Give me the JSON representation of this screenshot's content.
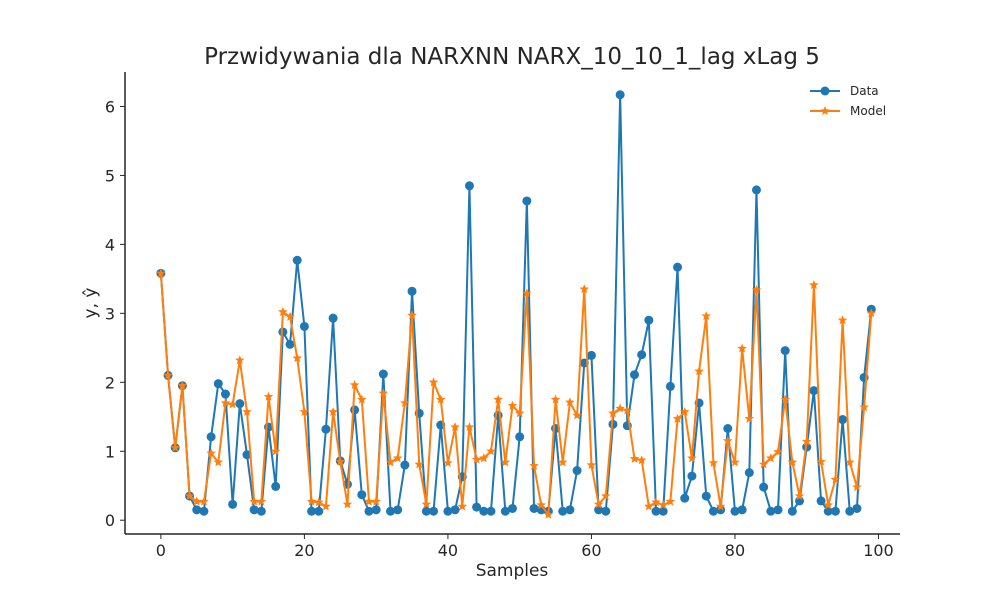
{
  "chart_data": {
    "type": "line",
    "title": "Przwidywania dla NARXNN NARX_10_10_1_lag xLag 5",
    "xlabel": "Samples",
    "ylabel": "y, ŷ",
    "xlim": [
      -5,
      103
    ],
    "ylim": [
      -0.2,
      6.5
    ],
    "x_ticks": [
      "0",
      "20",
      "40",
      "60",
      "80",
      "100"
    ],
    "y_ticks": [
      "0",
      "1",
      "2",
      "3",
      "4",
      "5",
      "6"
    ],
    "grid": false,
    "legend_position": "top-right",
    "x": [
      0,
      1,
      2,
      3,
      4,
      5,
      6,
      7,
      8,
      9,
      10,
      11,
      12,
      13,
      14,
      15,
      16,
      17,
      18,
      19,
      20,
      21,
      22,
      23,
      24,
      25,
      26,
      27,
      28,
      29,
      30,
      31,
      32,
      33,
      34,
      35,
      36,
      37,
      38,
      39,
      40,
      41,
      42,
      43,
      44,
      45,
      46,
      47,
      48,
      49,
      50,
      51,
      52,
      53,
      54,
      55,
      56,
      57,
      58,
      59,
      60,
      61,
      62,
      63,
      64,
      65,
      66,
      67,
      68,
      69,
      70,
      71,
      72,
      73,
      74,
      75,
      76,
      77,
      78,
      79,
      80,
      81,
      82,
      83,
      84,
      85,
      86,
      87,
      88,
      89,
      90,
      91,
      92,
      93,
      94,
      95,
      96,
      97,
      98,
      99
    ],
    "series": [
      {
        "name": "Data",
        "color": "#1f77b4",
        "marker": "circle",
        "values": [
          3.58,
          2.1,
          1.05,
          1.95,
          0.35,
          0.15,
          0.13,
          1.21,
          1.98,
          1.83,
          0.23,
          1.69,
          0.95,
          0.15,
          0.13,
          1.35,
          0.49,
          2.73,
          2.55,
          3.77,
          2.81,
          0.13,
          0.13,
          1.32,
          2.93,
          0.86,
          0.52,
          1.6,
          0.37,
          0.13,
          0.15,
          2.12,
          0.13,
          0.15,
          0.8,
          3.32,
          1.55,
          0.13,
          0.13,
          1.38,
          0.13,
          0.15,
          0.63,
          4.85,
          0.19,
          0.13,
          0.13,
          1.52,
          0.13,
          0.17,
          1.21,
          4.63,
          0.17,
          0.15,
          0.13,
          1.33,
          0.13,
          0.15,
          0.72,
          2.28,
          2.39,
          0.15,
          0.13,
          1.39,
          6.17,
          1.37,
          2.11,
          2.4,
          2.9,
          0.13,
          0.13,
          1.94,
          3.67,
          0.32,
          0.64,
          1.7,
          0.35,
          0.13,
          0.15,
          1.33,
          0.13,
          0.15,
          0.69,
          4.79,
          0.48,
          0.13,
          0.15,
          2.46,
          0.13,
          0.28,
          1.06,
          1.88,
          0.28,
          0.13,
          0.13,
          1.46,
          0.13,
          0.17,
          2.07,
          3.06
        ]
      },
      {
        "name": "Model",
        "color": "#ff7f0e",
        "marker": "star",
        "values": [
          3.58,
          2.1,
          1.05,
          1.95,
          0.35,
          0.27,
          0.27,
          0.97,
          0.84,
          1.7,
          1.68,
          2.32,
          1.57,
          0.27,
          0.27,
          1.79,
          1.0,
          3.02,
          2.95,
          2.35,
          1.57,
          0.27,
          0.26,
          0.2,
          1.57,
          0.85,
          0.23,
          1.96,
          1.75,
          0.27,
          0.27,
          1.84,
          0.84,
          0.9,
          1.7,
          2.97,
          0.81,
          0.23,
          2.0,
          1.75,
          0.83,
          1.35,
          0.2,
          1.35,
          0.88,
          0.9,
          1.0,
          1.75,
          0.84,
          1.66,
          1.55,
          3.29,
          0.79,
          0.22,
          0.08,
          1.75,
          0.84,
          1.71,
          1.52,
          3.35,
          0.8,
          0.23,
          0.35,
          1.55,
          1.62,
          1.59,
          0.89,
          0.87,
          0.2,
          0.26,
          0.22,
          0.27,
          1.47,
          1.57,
          0.9,
          2.16,
          2.96,
          0.83,
          0.2,
          1.15,
          0.84,
          2.49,
          1.47,
          3.34,
          0.81,
          0.9,
          0.99,
          1.75,
          0.84,
          0.35,
          1.14,
          3.41,
          0.85,
          0.22,
          0.59,
          2.9,
          0.84,
          0.48,
          1.64,
          3.0
        ]
      }
    ]
  }
}
